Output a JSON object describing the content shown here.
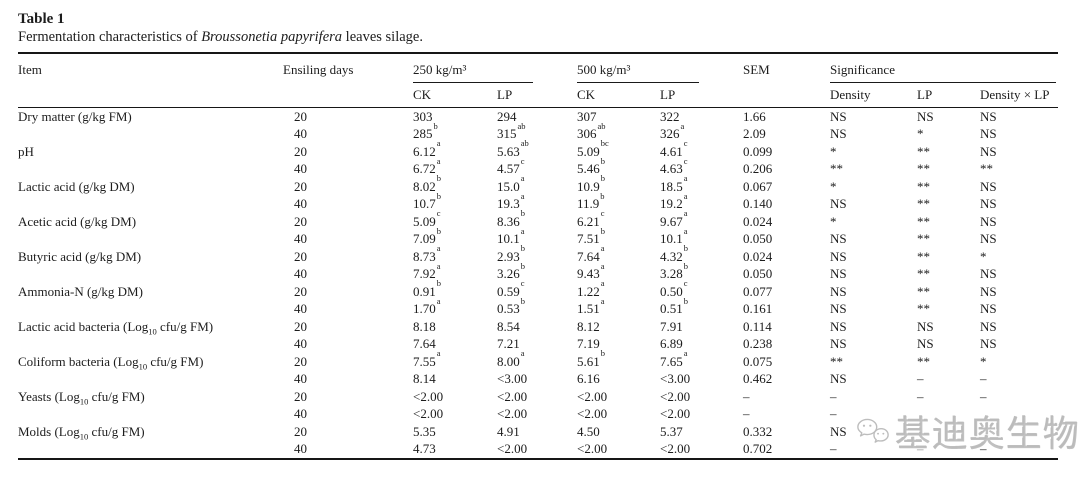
{
  "page": {
    "title": "Table 1"
  },
  "caption": {
    "prefix": "Fermentation characteristics of ",
    "species": "Broussonetia papyrifera",
    "suffix": " leaves silage."
  },
  "header": {
    "item": "Item",
    "ensiling_days": "Ensiling days",
    "group_250": "250 kg/m³",
    "group_500": "500 kg/m³",
    "sem": "SEM",
    "significance": "Significance",
    "sub": [
      "CK",
      "LP",
      "CK",
      "LP",
      "Density",
      "LP",
      "Density × LP"
    ]
  },
  "rows": [
    {
      "item": "Dry matter (g/kg FM)",
      "day": "20",
      "v": [
        [
          "303",
          ""
        ],
        [
          "294",
          ""
        ],
        [
          "307",
          ""
        ],
        [
          "322",
          ""
        ]
      ],
      "sem": "1.66",
      "sig": [
        "NS",
        "NS",
        "NS"
      ]
    },
    {
      "item": "",
      "day": "40",
      "v": [
        [
          "285",
          "b"
        ],
        [
          "315",
          "ab"
        ],
        [
          "306",
          "ab"
        ],
        [
          "326",
          "a"
        ]
      ],
      "sem": "2.09",
      "sig": [
        "NS",
        "*",
        "NS"
      ]
    },
    {
      "item": "pH",
      "day": "20",
      "v": [
        [
          "6.12",
          "a"
        ],
        [
          "5.63",
          "ab"
        ],
        [
          "5.09",
          "bc"
        ],
        [
          "4.61",
          "c"
        ]
      ],
      "sem": "0.099",
      "sig": [
        "*",
        "**",
        "NS"
      ]
    },
    {
      "item": "",
      "day": "40",
      "v": [
        [
          "6.72",
          "a"
        ],
        [
          "4.57",
          "c"
        ],
        [
          "5.46",
          "b"
        ],
        [
          "4.63",
          "c"
        ]
      ],
      "sem": "0.206",
      "sig": [
        "**",
        "**",
        "**"
      ]
    },
    {
      "item": "Lactic acid (g/kg DM)",
      "day": "20",
      "v": [
        [
          "8.02",
          "b"
        ],
        [
          "15.0",
          "a"
        ],
        [
          "10.9",
          "b"
        ],
        [
          "18.5",
          "a"
        ]
      ],
      "sem": "0.067",
      "sig": [
        "*",
        "**",
        "NS"
      ]
    },
    {
      "item": "",
      "day": "40",
      "v": [
        [
          "10.7",
          "b"
        ],
        [
          "19.3",
          "a"
        ],
        [
          "11.9",
          "b"
        ],
        [
          "19.2",
          "a"
        ]
      ],
      "sem": "0.140",
      "sig": [
        "NS",
        "**",
        "NS"
      ]
    },
    {
      "item": "Acetic acid (g/kg DM)",
      "day": "20",
      "v": [
        [
          "5.09",
          "c"
        ],
        [
          "8.36",
          "b"
        ],
        [
          "6.21",
          "c"
        ],
        [
          "9.67",
          "a"
        ]
      ],
      "sem": "0.024",
      "sig": [
        "*",
        "**",
        "NS"
      ]
    },
    {
      "item": "",
      "day": "40",
      "v": [
        [
          "7.09",
          "b"
        ],
        [
          "10.1",
          "a"
        ],
        [
          "7.51",
          "b"
        ],
        [
          "10.1",
          "a"
        ]
      ],
      "sem": "0.050",
      "sig": [
        "NS",
        "**",
        "NS"
      ]
    },
    {
      "item": "Butyric acid (g/kg DM)",
      "day": "20",
      "v": [
        [
          "8.73",
          "a"
        ],
        [
          "2.93",
          "b"
        ],
        [
          "7.64",
          "a"
        ],
        [
          "4.32",
          "b"
        ]
      ],
      "sem": "0.024",
      "sig": [
        "NS",
        "**",
        "*"
      ]
    },
    {
      "item": "",
      "day": "40",
      "v": [
        [
          "7.92",
          "a"
        ],
        [
          "3.26",
          "b"
        ],
        [
          "9.43",
          "a"
        ],
        [
          "3.28",
          "b"
        ]
      ],
      "sem": "0.050",
      "sig": [
        "NS",
        "**",
        "NS"
      ]
    },
    {
      "item": "Ammonia-N (g/kg DM)",
      "day": "20",
      "v": [
        [
          "0.91",
          "b"
        ],
        [
          "0.59",
          "c"
        ],
        [
          "1.22",
          "a"
        ],
        [
          "0.50",
          "c"
        ]
      ],
      "sem": "0.077",
      "sig": [
        "NS",
        "**",
        "NS"
      ]
    },
    {
      "item": "",
      "day": "40",
      "v": [
        [
          "1.70",
          "a"
        ],
        [
          "0.53",
          "b"
        ],
        [
          "1.51",
          "a"
        ],
        [
          "0.51",
          "b"
        ]
      ],
      "sem": "0.161",
      "sig": [
        "NS",
        "**",
        "NS"
      ]
    },
    {
      "item": [
        "Lactic acid bacteria (Log",
        "10",
        " cfu/g FM)"
      ],
      "day": "20",
      "v": [
        [
          "8.18",
          ""
        ],
        [
          "8.54",
          ""
        ],
        [
          "8.12",
          ""
        ],
        [
          "7.91",
          ""
        ]
      ],
      "sem": "0.114",
      "sig": [
        "NS",
        "NS",
        "NS"
      ]
    },
    {
      "item": "",
      "day": "40",
      "v": [
        [
          "7.64",
          ""
        ],
        [
          "7.21",
          ""
        ],
        [
          "7.19",
          ""
        ],
        [
          "6.89",
          ""
        ]
      ],
      "sem": "0.238",
      "sig": [
        "NS",
        "NS",
        "NS"
      ]
    },
    {
      "item": [
        "Coliform bacteria (Log",
        "10",
        " cfu/g FM)"
      ],
      "day": "20",
      "v": [
        [
          "7.55",
          "a"
        ],
        [
          "8.00",
          "a"
        ],
        [
          "5.61",
          "b"
        ],
        [
          "7.65",
          "a"
        ]
      ],
      "sem": "0.075",
      "sig": [
        "**",
        "**",
        "*"
      ]
    },
    {
      "item": "",
      "day": "40",
      "v": [
        [
          "8.14",
          ""
        ],
        [
          "<3.00",
          ""
        ],
        [
          "6.16",
          ""
        ],
        [
          "<3.00",
          ""
        ]
      ],
      "sem": "0.462",
      "sig": [
        "NS",
        "–",
        "–"
      ]
    },
    {
      "item": [
        "Yeasts (Log",
        "10",
        " cfu/g FM)"
      ],
      "day": "20",
      "v": [
        [
          "<2.00",
          ""
        ],
        [
          "<2.00",
          ""
        ],
        [
          "<2.00",
          ""
        ],
        [
          "<2.00",
          ""
        ]
      ],
      "sem": "–",
      "sig": [
        "–",
        "–",
        "–"
      ]
    },
    {
      "item": "",
      "day": "40",
      "v": [
        [
          "<2.00",
          ""
        ],
        [
          "<2.00",
          ""
        ],
        [
          "<2.00",
          ""
        ],
        [
          "<2.00",
          ""
        ]
      ],
      "sem": "–",
      "sig": [
        "–",
        "",
        ""
      ]
    },
    {
      "item": [
        "Molds (Log",
        "10",
        " cfu/g FM)"
      ],
      "day": "20",
      "v": [
        [
          "5.35",
          ""
        ],
        [
          "4.91",
          ""
        ],
        [
          "4.50",
          ""
        ],
        [
          "5.37",
          ""
        ]
      ],
      "sem": "0.332",
      "sig": [
        "NS",
        "",
        ""
      ]
    },
    {
      "item": "",
      "day": "40",
      "v": [
        [
          "4.73",
          ""
        ],
        [
          "<2.00",
          ""
        ],
        [
          "<2.00",
          ""
        ],
        [
          "<2.00",
          ""
        ]
      ],
      "sem": "0.702",
      "sig": [
        "–",
        "–",
        "–"
      ]
    }
  ],
  "watermark": {
    "text": "基迪奥生物",
    "icon": "wechat-chat-bubbles",
    "color": "#bababa"
  }
}
